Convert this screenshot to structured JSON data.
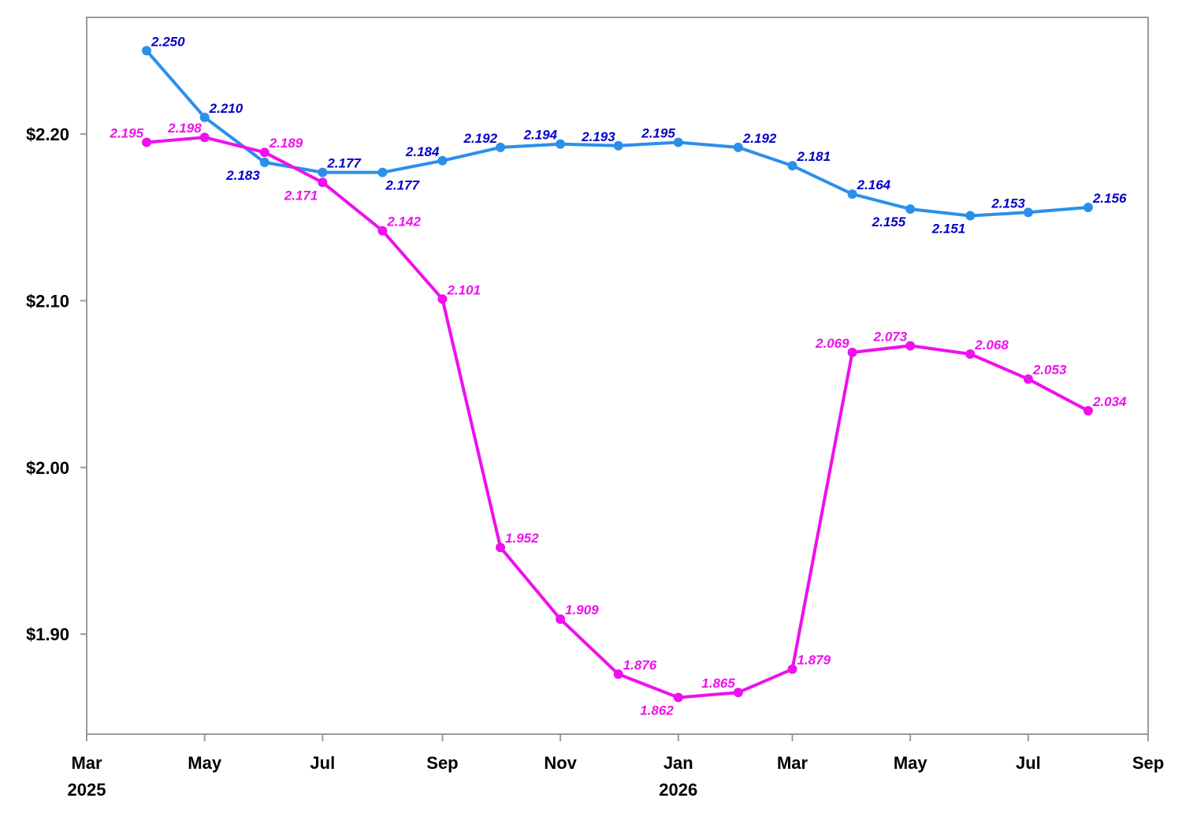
{
  "chart_data": {
    "type": "line",
    "title": "",
    "xlabel": "",
    "ylabel": "",
    "ylim": [
      1.84,
      2.27
    ],
    "xlim": [
      "2025-03-01",
      "2026-09-01"
    ],
    "grid": false,
    "x_ticks": [
      {
        "date": "2025-03-01",
        "label": "Mar",
        "year": "2025"
      },
      {
        "date": "2025-05-01",
        "label": "May",
        "year": ""
      },
      {
        "date": "2025-07-01",
        "label": "Jul",
        "year": ""
      },
      {
        "date": "2025-09-01",
        "label": "Sep",
        "year": ""
      },
      {
        "date": "2025-11-01",
        "label": "Nov",
        "year": ""
      },
      {
        "date": "2026-01-01",
        "label": "Jan",
        "year": "2026"
      },
      {
        "date": "2026-03-01",
        "label": "Mar",
        "year": ""
      },
      {
        "date": "2026-05-01",
        "label": "May",
        "year": ""
      },
      {
        "date": "2026-07-01",
        "label": "Jul",
        "year": ""
      },
      {
        "date": "2026-09-01",
        "label": "Sep",
        "year": ""
      }
    ],
    "y_ticks": [
      {
        "value": 1.9,
        "label": "$1.90"
      },
      {
        "value": 2.0,
        "label": "$2.00"
      },
      {
        "value": 2.1,
        "label": "$2.10"
      },
      {
        "value": 2.2,
        "label": "$2.20"
      }
    ],
    "x": [
      "2025-04-01",
      "2025-05-01",
      "2025-06-01",
      "2025-07-01",
      "2025-08-01",
      "2025-09-01",
      "2025-10-01",
      "2025-11-01",
      "2025-12-01",
      "2026-01-01",
      "2026-02-01",
      "2026-03-01",
      "2026-04-01",
      "2026-05-01",
      "2026-06-01",
      "2026-07-01",
      "2026-08-01"
    ],
    "series": [
      {
        "color": "#2b8fea",
        "label_color": "#0000c8",
        "values": [
          2.25,
          2.21,
          2.183,
          2.177,
          2.177,
          2.184,
          2.192,
          2.194,
          2.193,
          2.195,
          2.192,
          2.181,
          2.164,
          2.155,
          2.151,
          2.153,
          2.156
        ],
        "labels": [
          "2.250",
          "2.210",
          "2.183",
          "2.177",
          "2.177",
          "2.184",
          "2.192",
          "2.194",
          "2.193",
          "2.195",
          "2.192",
          "2.181",
          "2.164",
          "2.155",
          "2.151",
          "2.153",
          "2.156"
        ],
        "label_pos": [
          "above-right",
          "above-right",
          "below-left",
          "above-right",
          "below-right",
          "above-left",
          "above-left",
          "above-left",
          "above-left",
          "above-left",
          "above-right",
          "above-right",
          "above-right",
          "below-left",
          "below-left",
          "above-left",
          "above-right"
        ]
      },
      {
        "color": "#ee10ee",
        "label_color": "#ee10ee",
        "values": [
          2.195,
          2.198,
          2.189,
          2.171,
          2.142,
          2.101,
          1.952,
          1.909,
          1.876,
          1.862,
          1.865,
          1.879,
          2.069,
          2.073,
          2.068,
          2.053,
          2.034
        ],
        "labels": [
          "2.195",
          "2.198",
          "2.189",
          "2.171",
          "2.142",
          "2.101",
          "1.952",
          "1.909",
          "1.876",
          "1.862",
          "1.865",
          "1.879",
          "2.069",
          "2.073",
          "2.068",
          "2.053",
          "2.034"
        ],
        "label_pos": [
          "above-left",
          "above-left",
          "above-right",
          "below-left",
          "above-right",
          "above-right",
          "above-right",
          "above-right",
          "above-right",
          "below-left",
          "above-left",
          "above-right",
          "above-left",
          "above-left",
          "above-right",
          "above-right",
          "above-right"
        ]
      }
    ]
  }
}
